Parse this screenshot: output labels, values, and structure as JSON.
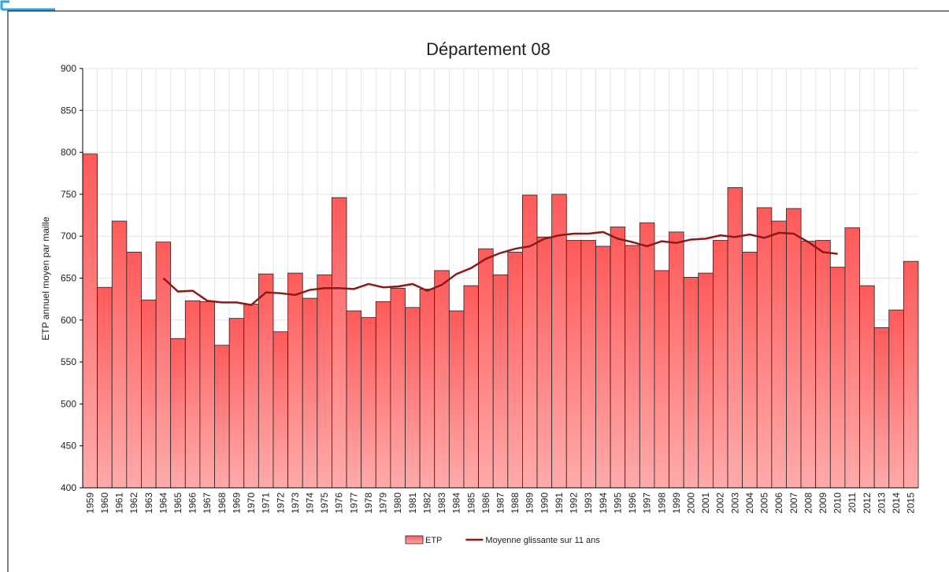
{
  "chart_data": {
    "type": "bar",
    "title": "Département 08",
    "y_label": "ETP annuel moyen par maille",
    "categories": [
      "1959",
      "1960",
      "1961",
      "1962",
      "1963",
      "1964",
      "1965",
      "1966",
      "1967",
      "1968",
      "1969",
      "1970",
      "1971",
      "1972",
      "1973",
      "1974",
      "1975",
      "1976",
      "1977",
      "1978",
      "1979",
      "1980",
      "1981",
      "1982",
      "1983",
      "1984",
      "1985",
      "1986",
      "1987",
      "1988",
      "1989",
      "1990",
      "1991",
      "1992",
      "1993",
      "1994",
      "1995",
      "1996",
      "1997",
      "1998",
      "1999",
      "2000",
      "2001",
      "2002",
      "2003",
      "2004",
      "2005",
      "2006",
      "2007",
      "2008",
      "2009",
      "2010",
      "2011",
      "2012",
      "2013",
      "2014",
      "2015"
    ],
    "series": [
      {
        "name": "ETP",
        "type": "bar",
        "color": "#ff5a5a",
        "values": [
          798,
          639,
          718,
          681,
          624,
          693,
          578,
          623,
          622,
          570,
          602,
          619,
          655,
          586,
          656,
          626,
          654,
          746,
          611,
          603,
          622,
          638,
          615,
          637,
          659,
          611,
          641,
          685,
          654,
          681,
          749,
          699,
          750,
          695,
          695,
          688,
          711,
          689,
          716,
          659,
          705,
          651,
          656,
          695,
          758,
          681,
          734,
          718,
          733,
          694,
          695,
          663,
          710,
          641,
          591,
          612,
          670
        ]
      },
      {
        "name": "Moyenne glissante sur 11 ans",
        "type": "line",
        "color": "#8b1a1a",
        "values": [
          null,
          null,
          null,
          null,
          null,
          650,
          634,
          635,
          623,
          621,
          621,
          618,
          633,
          632,
          630,
          636,
          638,
          638,
          637,
          643,
          639,
          640,
          643,
          635,
          642,
          655,
          662,
          673,
          680,
          685,
          688,
          697,
          701,
          703,
          703,
          705,
          697,
          693,
          688,
          694,
          692,
          696,
          697,
          701,
          699,
          702,
          698,
          704,
          703,
          693,
          681,
          679,
          null,
          null,
          null,
          null,
          null
        ]
      }
    ],
    "ylim": [
      400,
      900
    ],
    "yticks": [
      400,
      450,
      500,
      550,
      600,
      650,
      700,
      750,
      800,
      850,
      900
    ],
    "grid": true
  }
}
